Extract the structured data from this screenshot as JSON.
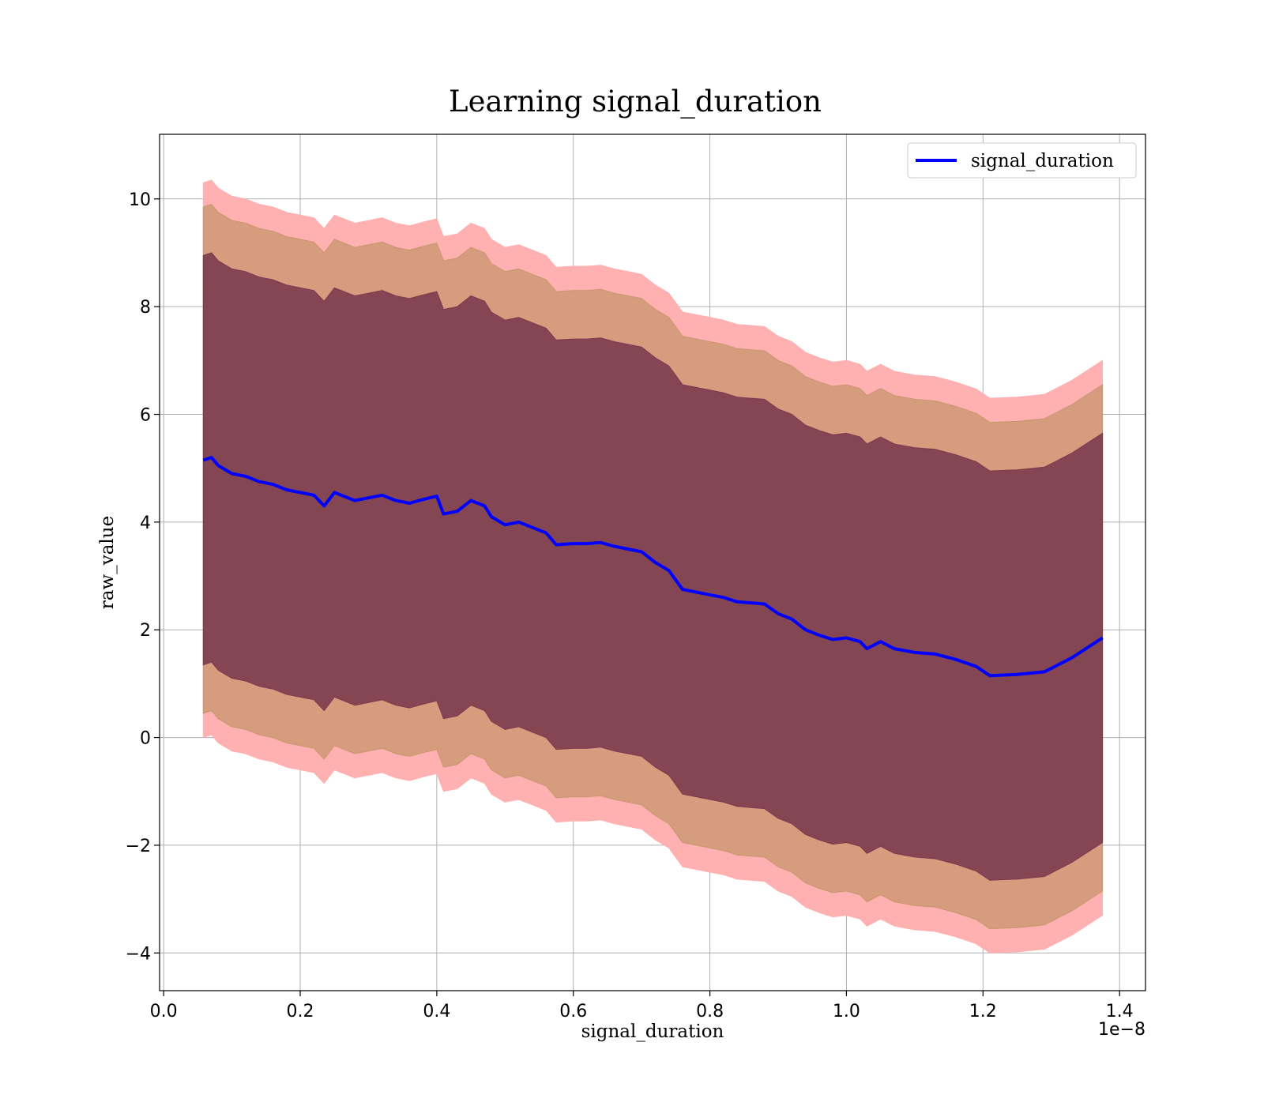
{
  "chart_data": {
    "type": "area",
    "title": "Learning signal_duration",
    "xlabel": "signal_duration",
    "ylabel": "raw_value",
    "x_offset_label": "1e−8",
    "xlim": [
      -0.006,
      1.438
    ],
    "ylim": [
      -4.7,
      11.2
    ],
    "xticks": [
      0.0,
      0.2,
      0.4,
      0.6,
      0.8,
      1.0,
      1.2,
      1.4
    ],
    "xtick_labels": [
      "0.0",
      "0.2",
      "0.4",
      "0.6",
      "0.8",
      "1.0",
      "1.2",
      "1.4"
    ],
    "yticks": [
      -4,
      -2,
      0,
      2,
      4,
      6,
      8,
      10
    ],
    "ytick_labels": [
      "−4",
      "−2",
      "0",
      "2",
      "4",
      "6",
      "8",
      "10"
    ],
    "grid": true,
    "legend_position": "top-right",
    "band_widths": [
      3.8,
      4.7,
      5.15
    ],
    "band_colors": [
      "#7a3a4f",
      "#c8956e",
      "#ffb0b0"
    ],
    "x": [
      0.058,
      0.07,
      0.08,
      0.1,
      0.12,
      0.14,
      0.16,
      0.18,
      0.2,
      0.22,
      0.235,
      0.25,
      0.28,
      0.3,
      0.32,
      0.34,
      0.36,
      0.38,
      0.4,
      0.41,
      0.43,
      0.45,
      0.47,
      0.48,
      0.5,
      0.52,
      0.54,
      0.56,
      0.575,
      0.6,
      0.62,
      0.64,
      0.66,
      0.68,
      0.7,
      0.72,
      0.74,
      0.76,
      0.78,
      0.8,
      0.82,
      0.84,
      0.86,
      0.88,
      0.9,
      0.92,
      0.94,
      0.96,
      0.98,
      1.0,
      1.02,
      1.03,
      1.05,
      1.07,
      1.1,
      1.13,
      1.16,
      1.19,
      1.21,
      1.25,
      1.29,
      1.33,
      1.375
    ],
    "series": [
      {
        "name": "signal_duration",
        "color": "#0000ff",
        "values": [
          5.15,
          5.2,
          5.05,
          4.9,
          4.85,
          4.75,
          4.7,
          4.6,
          4.55,
          4.5,
          4.3,
          4.55,
          4.4,
          4.45,
          4.5,
          4.4,
          4.35,
          4.42,
          4.48,
          4.15,
          4.2,
          4.4,
          4.3,
          4.1,
          3.95,
          4.0,
          3.9,
          3.8,
          3.58,
          3.6,
          3.6,
          3.62,
          3.55,
          3.5,
          3.45,
          3.25,
          3.1,
          2.75,
          2.7,
          2.65,
          2.6,
          2.52,
          2.5,
          2.48,
          2.3,
          2.2,
          2.0,
          1.9,
          1.82,
          1.85,
          1.78,
          1.65,
          1.78,
          1.65,
          1.58,
          1.55,
          1.45,
          1.32,
          1.15,
          1.17,
          1.22,
          1.48,
          1.85
        ]
      }
    ]
  }
}
